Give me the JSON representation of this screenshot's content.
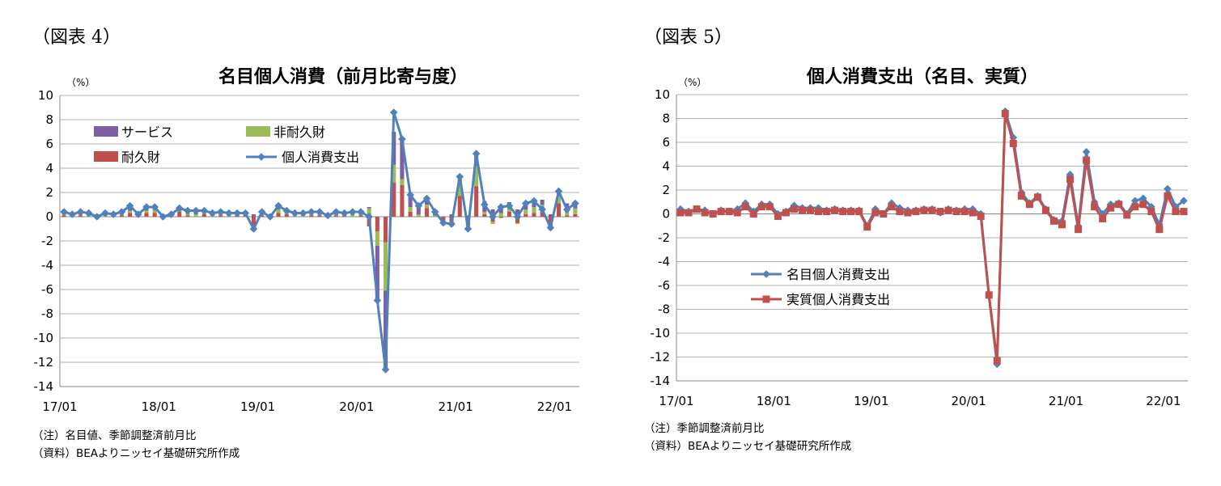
{
  "colors": {
    "services": "#7f5fa3",
    "nondurable": "#9bbb59",
    "durable": "#c0504d",
    "pce_line": "#4f81bd",
    "real_line": "#c0504d",
    "grid": "#b0b0b0",
    "axis": "#888888"
  },
  "left": {
    "figure_label": "（図表 4）",
    "unit": "（%）",
    "notes": [
      "（注）名目値、季節調整済前月比",
      "（資料）BEAよりニッセイ基礎研究所作成"
    ]
  },
  "right": {
    "figure_label": "（図表 5）",
    "unit": "（%）",
    "notes": [
      "（注）季節調整済前月比",
      "（資料）BEAよりニッセイ基礎研究所作成"
    ]
  },
  "chart_data": [
    {
      "type": "bar",
      "stacked": true,
      "title": "名目個人消費（前月比寄与度）",
      "ylabel": "（%）",
      "ylim": [
        -14,
        10
      ],
      "yticks": [
        10,
        8,
        6,
        4,
        2,
        0,
        -2,
        -4,
        -6,
        -8,
        -10,
        -12,
        -14
      ],
      "xtick_labels": [
        "17/01",
        "18/01",
        "19/01",
        "20/01",
        "21/01",
        "22/01"
      ],
      "xtick_index": [
        0,
        12,
        24,
        36,
        48,
        60
      ],
      "grid": true,
      "legend_position": "top-left",
      "x": [
        "17/01",
        "17/02",
        "17/03",
        "17/04",
        "17/05",
        "17/06",
        "17/07",
        "17/08",
        "17/09",
        "17/10",
        "17/11",
        "17/12",
        "18/01",
        "18/02",
        "18/03",
        "18/04",
        "18/05",
        "18/06",
        "18/07",
        "18/08",
        "18/09",
        "18/10",
        "18/11",
        "18/12",
        "19/01",
        "19/02",
        "19/03",
        "19/04",
        "19/05",
        "19/06",
        "19/07",
        "19/08",
        "19/09",
        "19/10",
        "19/11",
        "19/12",
        "20/01",
        "20/02",
        "20/03",
        "20/04",
        "20/05",
        "20/06",
        "20/07",
        "20/08",
        "20/09",
        "20/10",
        "20/11",
        "20/12",
        "21/01",
        "21/02",
        "21/03",
        "21/04",
        "21/05",
        "21/06",
        "21/07",
        "21/08",
        "21/09",
        "21/10",
        "21/11",
        "21/12",
        "22/01",
        "22/02",
        "22/03"
      ],
      "series": [
        {
          "name": "サービス",
          "kind": "bar",
          "values": [
            0.2,
            0.1,
            0.2,
            0.2,
            0.0,
            0.2,
            0.1,
            0.2,
            0.4,
            0.1,
            0.3,
            0.2,
            0.1,
            0.1,
            0.2,
            0.2,
            0.3,
            0.2,
            0.2,
            0.2,
            0.2,
            0.2,
            0.1,
            0.2,
            0.1,
            0.1,
            0.3,
            0.2,
            0.2,
            0.2,
            0.2,
            0.2,
            0.1,
            0.2,
            0.1,
            0.2,
            0.2,
            0.1,
            -4.5,
            -6.5,
            2.7,
            3.3,
            1.0,
            0.7,
            0.5,
            0.3,
            -0.1,
            0.2,
            0.5,
            0.1,
            1.0,
            0.9,
            0.6,
            0.6,
            0.5,
            0.6,
            0.5,
            0.6,
            0.4,
            0.2,
            0.3,
            0.5,
            0.4
          ]
        },
        {
          "name": "非耐久財",
          "kind": "bar",
          "values": [
            0.1,
            0.0,
            0.1,
            0.1,
            0.0,
            0.1,
            0.0,
            0.1,
            0.2,
            0.0,
            0.2,
            0.3,
            -0.1,
            0.0,
            0.1,
            0.2,
            0.2,
            0.1,
            0.1,
            0.1,
            0.1,
            0.0,
            0.1,
            -0.3,
            0.2,
            0.0,
            0.3,
            0.1,
            0.1,
            0.1,
            0.1,
            0.1,
            0.0,
            0.1,
            0.1,
            0.2,
            0.1,
            0.7,
            -1.2,
            -4.0,
            1.5,
            0.5,
            0.4,
            0.2,
            0.3,
            0.1,
            0.0,
            -0.3,
            1.1,
            -0.4,
            1.7,
            0.2,
            -0.2,
            0.3,
            0.3,
            -0.1,
            0.4,
            0.5,
            0.5,
            0.0,
            0.6,
            0.5,
            0.5
          ]
        },
        {
          "name": "耐久財",
          "kind": "bar",
          "values": [
            0.1,
            0.1,
            0.1,
            0.0,
            0.0,
            0.0,
            0.1,
            0.1,
            0.3,
            0.1,
            0.3,
            0.3,
            0.0,
            0.1,
            0.4,
            0.1,
            0.0,
            0.2,
            0.0,
            0.1,
            0.0,
            0.1,
            0.1,
            -0.9,
            0.1,
            -0.1,
            0.3,
            0.2,
            0.0,
            0.0,
            0.1,
            0.1,
            0.0,
            0.1,
            0.1,
            0.0,
            0.1,
            -0.8,
            -1.2,
            -2.1,
            2.8,
            2.6,
            0.4,
            0.0,
            0.7,
            0.0,
            -0.4,
            -0.5,
            1.7,
            -0.7,
            2.5,
            0.2,
            -0.4,
            -0.1,
            0.4,
            -0.5,
            0.2,
            0.3,
            0.5,
            -1.1,
            1.1,
            0.1,
            0.2
          ]
        },
        {
          "name": "個人消費支出",
          "kind": "line",
          "values": [
            0.4,
            0.2,
            0.4,
            0.3,
            0.0,
            0.3,
            0.2,
            0.4,
            0.9,
            0.2,
            0.8,
            0.8,
            0.0,
            0.2,
            0.7,
            0.5,
            0.5,
            0.5,
            0.3,
            0.4,
            0.3,
            0.3,
            0.3,
            -1.0,
            0.4,
            0.0,
            0.9,
            0.5,
            0.3,
            0.3,
            0.4,
            0.4,
            0.1,
            0.4,
            0.3,
            0.4,
            0.4,
            0.0,
            -6.9,
            -12.6,
            8.6,
            6.4,
            1.8,
            0.9,
            1.5,
            0.4,
            -0.5,
            -0.6,
            3.3,
            -1.0,
            5.2,
            1.0,
            0.0,
            0.8,
            0.9,
            0.0,
            1.1,
            1.3,
            0.6,
            -0.9,
            2.1,
            0.6,
            1.1
          ]
        }
      ]
    },
    {
      "type": "line",
      "title": "個人消費支出（名目、実質）",
      "ylabel": "（%）",
      "ylim": [
        -14,
        10
      ],
      "yticks": [
        10,
        8,
        6,
        4,
        2,
        0,
        -2,
        -4,
        -6,
        -8,
        -10,
        -12,
        -14
      ],
      "xtick_labels": [
        "17/01",
        "18/01",
        "19/01",
        "20/01",
        "21/01",
        "22/01"
      ],
      "xtick_index": [
        0,
        12,
        24,
        36,
        48,
        60
      ],
      "grid": true,
      "legend_position": "center-left",
      "series": [
        {
          "name": "名目個人消費支出",
          "marker": "diamond",
          "values": [
            0.4,
            0.2,
            0.4,
            0.3,
            0.0,
            0.3,
            0.2,
            0.4,
            0.9,
            0.2,
            0.8,
            0.8,
            0.0,
            0.2,
            0.7,
            0.5,
            0.5,
            0.5,
            0.3,
            0.4,
            0.3,
            0.3,
            0.3,
            -1.0,
            0.4,
            0.0,
            0.9,
            0.5,
            0.3,
            0.3,
            0.4,
            0.4,
            0.1,
            0.4,
            0.3,
            0.4,
            0.4,
            0.0,
            -6.9,
            -12.6,
            8.6,
            6.4,
            1.8,
            0.9,
            1.5,
            0.4,
            -0.5,
            -0.6,
            3.3,
            -1.0,
            5.2,
            1.0,
            0.0,
            0.8,
            0.9,
            0.0,
            1.1,
            1.3,
            0.6,
            -0.9,
            2.1,
            0.6,
            1.1
          ]
        },
        {
          "name": "実質個人消費支出",
          "marker": "square",
          "values": [
            0.1,
            0.1,
            0.4,
            0.1,
            0.0,
            0.2,
            0.2,
            0.1,
            0.6,
            0.0,
            0.6,
            0.6,
            -0.2,
            0.1,
            0.4,
            0.3,
            0.3,
            0.2,
            0.2,
            0.3,
            0.2,
            0.2,
            0.2,
            -1.1,
            0.1,
            0.0,
            0.6,
            0.2,
            0.1,
            0.2,
            0.3,
            0.3,
            0.2,
            0.3,
            0.2,
            0.2,
            0.1,
            -0.2,
            -6.8,
            -12.3,
            8.4,
            5.9,
            1.5,
            0.8,
            1.4,
            0.3,
            -0.6,
            -0.9,
            2.9,
            -1.3,
            4.5,
            0.6,
            -0.4,
            0.5,
            0.8,
            -0.1,
            0.6,
            0.8,
            0.2,
            -1.3,
            1.5,
            0.2,
            0.2
          ]
        }
      ]
    }
  ]
}
